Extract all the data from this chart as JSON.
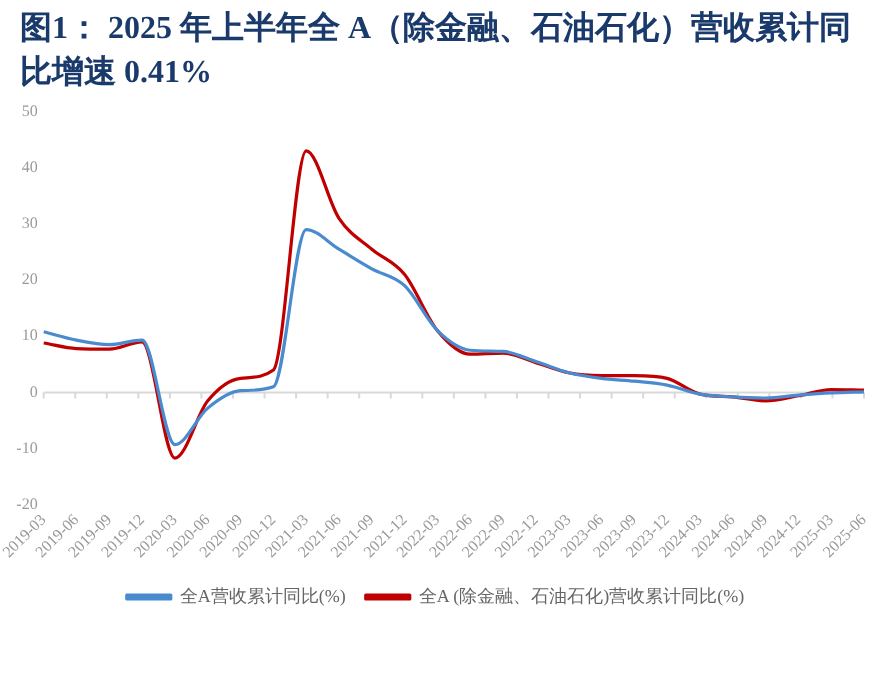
{
  "chart_data": {
    "type": "line",
    "title": "图1：  2025 年上半年全 A（除金融、石油石化）营收累计同比增速 0.41%",
    "categories": [
      "2019-03",
      "2019-06",
      "2019-09",
      "2019-12",
      "2020-03",
      "2020-06",
      "2020-09",
      "2020-12",
      "2021-03",
      "2021-06",
      "2021-09",
      "2021-12",
      "2022-03",
      "2022-06",
      "2022-09",
      "2022-12",
      "2023-03",
      "2023-06",
      "2023-09",
      "2023-12",
      "2024-03",
      "2024-06",
      "2024-09",
      "2024-12",
      "2025-03",
      "2025-06"
    ],
    "series": [
      {
        "name": "全A营收累计同比(%)",
        "color": "#4a8bd0",
        "values": [
          10.8,
          9.3,
          8.5,
          9.3,
          -9.3,
          -2.8,
          0.3,
          1.0,
          29,
          25.5,
          22,
          19,
          11,
          7.5,
          7.3,
          5.5,
          3.5,
          2.5,
          2.0,
          1.3,
          -0.3,
          -0.8,
          -1.0,
          -0.5,
          -0.1,
          0.1
        ]
      },
      {
        "name": "全A (除金融、石油石化)营收累计同比(%)",
        "color": "#c00000",
        "values": [
          8.8,
          7.8,
          7.7,
          9.0,
          -11.7,
          -1.5,
          2.5,
          4,
          43,
          31,
          25.5,
          21,
          11,
          6.8,
          7.0,
          5.3,
          3.5,
          3.0,
          3.0,
          2.5,
          -0.3,
          -0.8,
          -1.5,
          -0.6,
          0.5,
          0.41
        ]
      }
    ],
    "ylim": [
      -20,
      50
    ],
    "yticks": [
      -20,
      -10,
      0,
      10,
      20,
      30,
      40,
      50
    ],
    "grid": false,
    "ref_lines": [
      {
        "axis": "y",
        "value": 0,
        "color": "#d9d9d9"
      }
    ],
    "legend": "bottom",
    "marker": "none",
    "line_style": "solid"
  }
}
